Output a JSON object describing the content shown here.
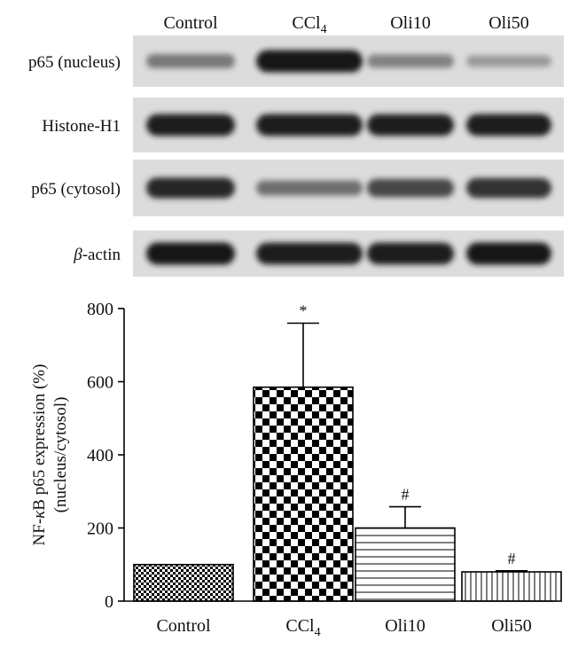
{
  "blot": {
    "lanes": [
      "Control",
      "CCl",
      "Oli10",
      "Oli50"
    ],
    "lane_subscripts": [
      "",
      "4",
      "",
      ""
    ],
    "rows": [
      {
        "label": "p65 (nucleus)",
        "intensity": [
          0.45,
          0.95,
          0.4,
          0.28
        ]
      },
      {
        "label": "Histone-H1",
        "intensity": [
          0.92,
          0.92,
          0.9,
          0.92
        ]
      },
      {
        "label": "p65 (cytosol)",
        "intensity": [
          0.85,
          0.5,
          0.7,
          0.8
        ]
      },
      {
        "label_greek": "β",
        "label_rest": "-actin",
        "intensity": [
          0.95,
          0.92,
          0.92,
          0.95
        ]
      }
    ]
  },
  "chart_data": {
    "type": "bar",
    "categories": [
      "Control",
      "CCl",
      "Oli10",
      "Oli50"
    ],
    "category_subscripts": [
      "",
      "4",
      "",
      ""
    ],
    "values": [
      100,
      585,
      200,
      80
    ],
    "errors": [
      0,
      175,
      58,
      3
    ],
    "annotations": [
      "",
      "*",
      "#",
      "#"
    ],
    "patterns": [
      "small-checker",
      "large-checker",
      "horizontal-lines",
      "vertical-lines"
    ],
    "ylabel_line1_a": "NF-",
    "ylabel_line1_greek": "κ",
    "ylabel_line1_b": "B p65 expression (%)",
    "ylabel_line2": "(nucleus/cytosol)",
    "ylim": [
      0,
      800
    ],
    "yticks": [
      0,
      200,
      400,
      600,
      800
    ],
    "grid": false
  }
}
